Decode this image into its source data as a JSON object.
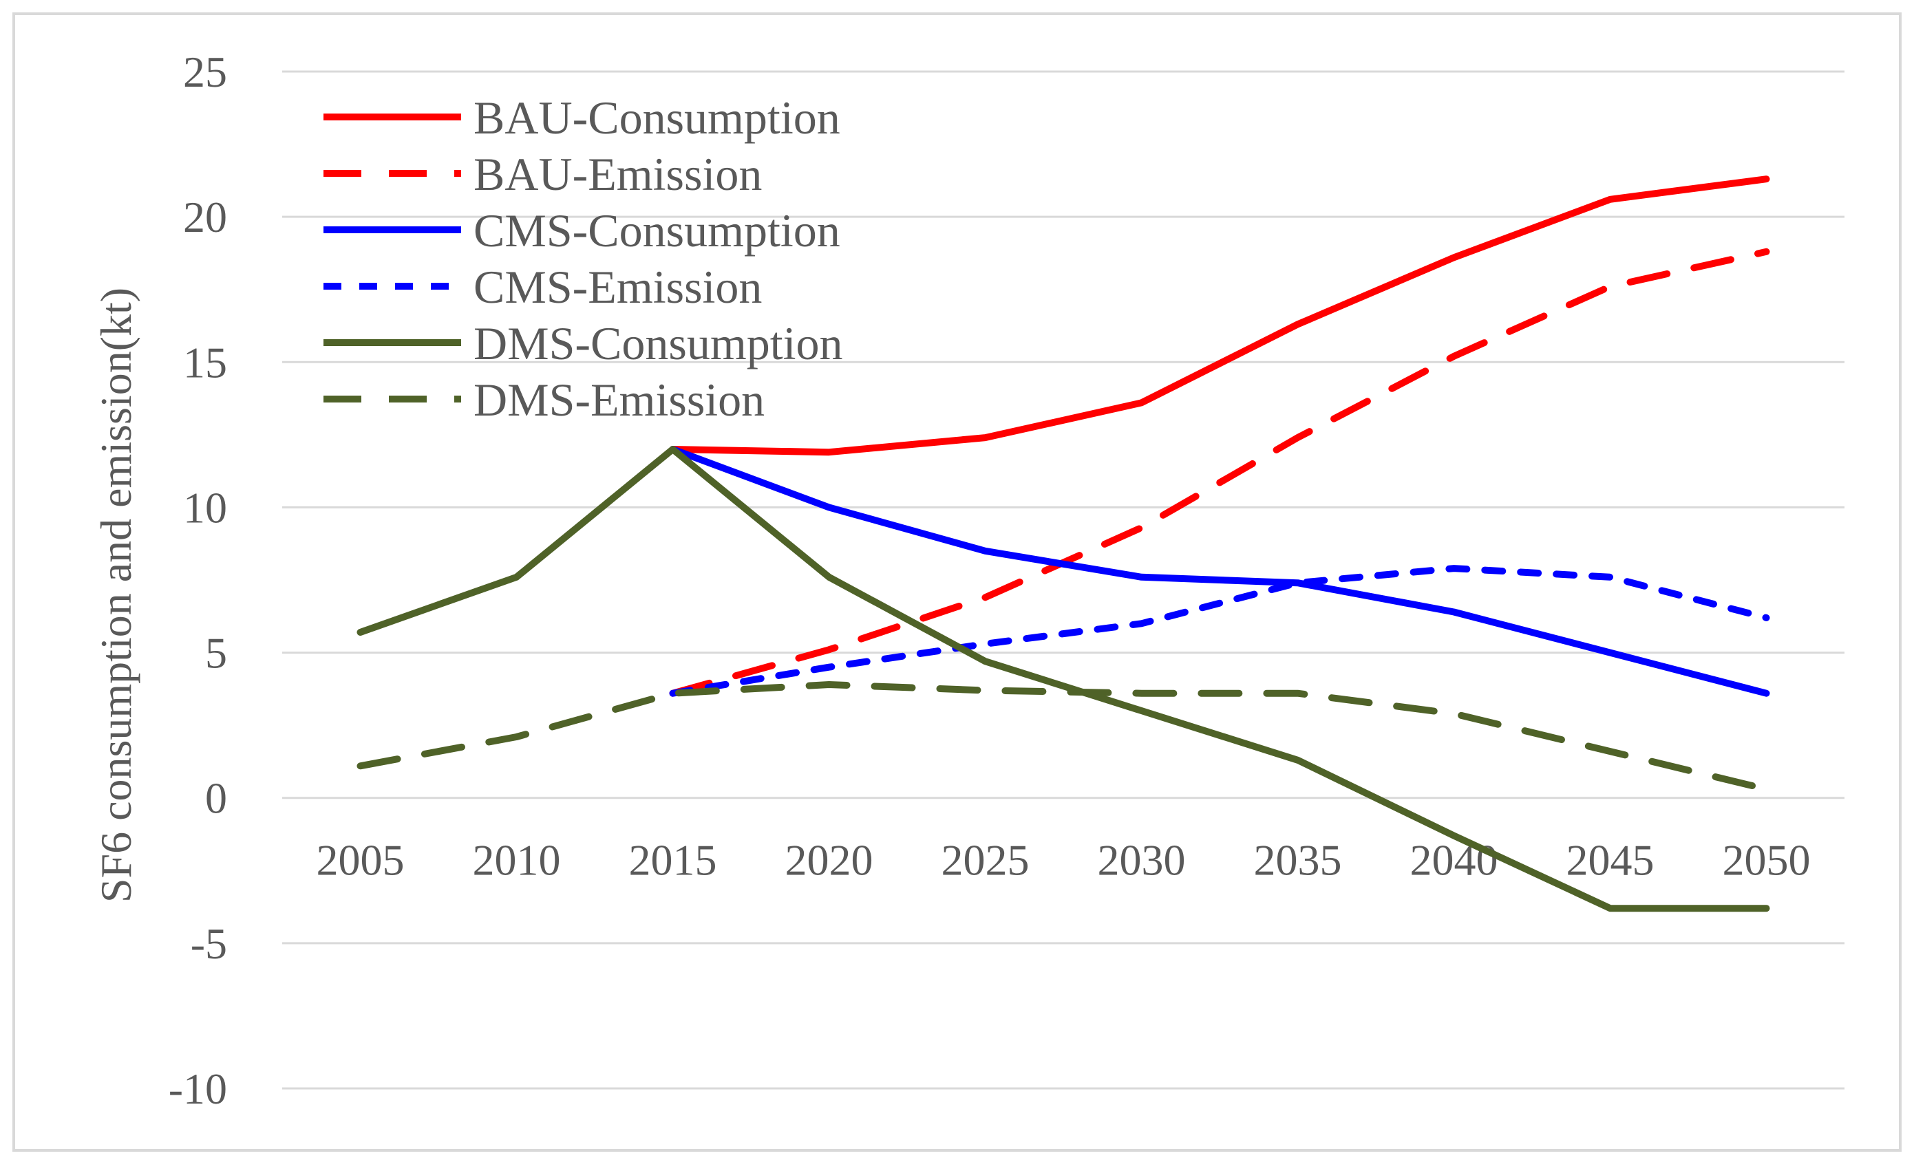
{
  "chart_data": {
    "type": "line",
    "title": "",
    "xlabel": "",
    "ylabel": "SF6 consumption and emission(kt)",
    "ylim": [
      -10,
      25
    ],
    "yticks": [
      25,
      20,
      15,
      10,
      5,
      0,
      -5,
      -10
    ],
    "grid": true,
    "legend_position": "top-left",
    "categories": [
      2005,
      2010,
      2015,
      2020,
      2025,
      2030,
      2035,
      2040,
      2045,
      2050
    ],
    "series": [
      {
        "name": "BAU-Consumption",
        "color": "#ff0000",
        "dash": "solid",
        "values": [
          null,
          null,
          12.0,
          11.9,
          12.4,
          13.6,
          16.3,
          18.6,
          20.6,
          21.3
        ]
      },
      {
        "name": "BAU-Emission",
        "color": "#ff0000",
        "dash": "long",
        "values": [
          null,
          null,
          3.6,
          5.1,
          6.9,
          9.3,
          12.4,
          15.2,
          17.6,
          18.8
        ]
      },
      {
        "name": "CMS-Consumption",
        "color": "#0000ff",
        "dash": "solid",
        "values": [
          null,
          null,
          12.0,
          10.0,
          8.5,
          7.6,
          7.4,
          6.4,
          5.0,
          3.6
        ]
      },
      {
        "name": "CMS-Emission",
        "color": "#0000ff",
        "dash": "short",
        "values": [
          null,
          null,
          3.6,
          4.5,
          5.3,
          6.0,
          7.4,
          7.9,
          7.6,
          6.2
        ]
      },
      {
        "name": "DMS-Consumption",
        "color": "#4f6228",
        "dash": "solid",
        "values": [
          5.7,
          7.6,
          12.0,
          7.6,
          4.7,
          3.0,
          1.3,
          -1.3,
          -3.8,
          -3.8
        ]
      },
      {
        "name": "DMS-Emission",
        "color": "#4f6228",
        "dash": "long",
        "values": [
          1.1,
          2.1,
          3.6,
          3.9,
          3.7,
          3.6,
          3.6,
          2.9,
          1.6,
          0.3
        ]
      }
    ]
  }
}
